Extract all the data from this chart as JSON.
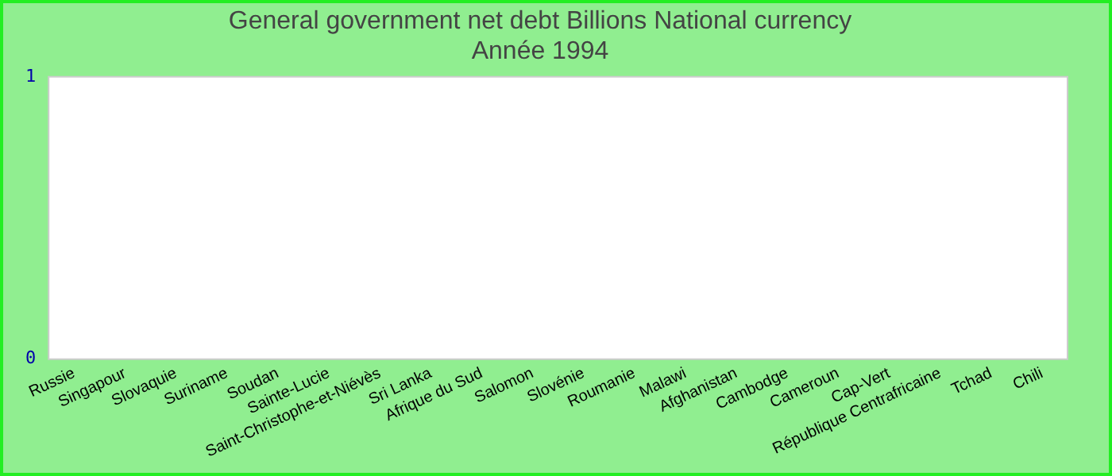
{
  "chart_data": {
    "type": "bar",
    "title": "General government net debt Billions National currency",
    "subtitle": "Année 1994",
    "categories": [
      "Russie",
      "Singapour",
      "Slovaquie",
      "Suriname",
      "Soudan",
      "Sainte-Lucie",
      "Saint-Christophe-et-Niévès",
      "Sri Lanka",
      "Afrique du Sud",
      "Salomon",
      "Slovénie",
      "Roumanie",
      "Malawi",
      "Afghanistan",
      "Cambodge",
      "Cameroun",
      "Cap-Vert",
      "République Centrafricaine",
      "Tchad",
      "Chili"
    ],
    "values": [
      0,
      0,
      0,
      0,
      0,
      0,
      0,
      0,
      0,
      0,
      0,
      0,
      0,
      0,
      0,
      0,
      0,
      0,
      0,
      0
    ],
    "ylim": [
      0,
      1
    ],
    "yticks": [
      0,
      1
    ],
    "grid": false,
    "legend": false
  }
}
